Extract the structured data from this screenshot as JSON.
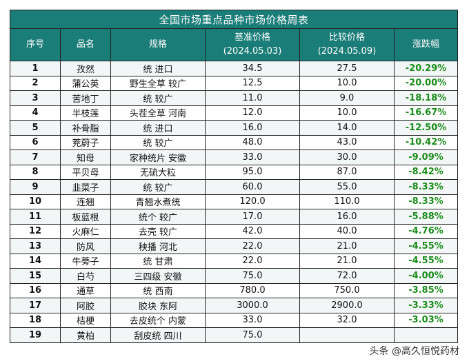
{
  "table": {
    "title": "全国市场重点品种市场价格周表",
    "headers": {
      "index": "序号",
      "name": "品名",
      "spec": "规格",
      "base_price": "基准价格",
      "base_date": "(2024.05.03)",
      "cmp_price": "比较价格",
      "cmp_date": "(2024.05.09)",
      "change": "涨跌幅"
    },
    "rows": [
      {
        "idx": "1",
        "name": "孜然",
        "spec": "统 进口",
        "base": "34.5",
        "cmp": "27.5",
        "chg": "-20.29%"
      },
      {
        "idx": "2",
        "name": "蒲公英",
        "spec": "野生全草 较广",
        "base": "12.5",
        "cmp": "10.0",
        "chg": "-20.00%"
      },
      {
        "idx": "3",
        "name": "苦地丁",
        "spec": "统 较广",
        "base": "11.0",
        "cmp": "9.0",
        "chg": "-18.18%"
      },
      {
        "idx": "4",
        "name": "半枝莲",
        "spec": "头茬全草 河南",
        "base": "12.0",
        "cmp": "10.0",
        "chg": "-16.67%"
      },
      {
        "idx": "5",
        "name": "补骨脂",
        "spec": "统 进口",
        "base": "16.0",
        "cmp": "14.0",
        "chg": "-12.50%"
      },
      {
        "idx": "6",
        "name": "茺蔚子",
        "spec": "统 较广",
        "base": "48.0",
        "cmp": "43.0",
        "chg": "-10.42%"
      },
      {
        "idx": "7",
        "name": "知母",
        "spec": "家种统片 安徽",
        "base": "33.0",
        "cmp": "30.0",
        "chg": "-9.09%"
      },
      {
        "idx": "8",
        "name": "平贝母",
        "spec": "无硫大粒",
        "base": "95.0",
        "cmp": "87.0",
        "chg": "-8.42%"
      },
      {
        "idx": "9",
        "name": "韭菜子",
        "spec": "统 较广",
        "base": "60.0",
        "cmp": "55.0",
        "chg": "-8.33%"
      },
      {
        "idx": "10",
        "name": "连翘",
        "spec": "青翘水煮统",
        "base": "120.0",
        "cmp": "110.0",
        "chg": "-8.33%"
      },
      {
        "idx": "11",
        "name": "板蓝根",
        "spec": "统个 较广",
        "base": "17.0",
        "cmp": "16.0",
        "chg": "-5.88%"
      },
      {
        "idx": "12",
        "name": "火麻仁",
        "spec": "去壳 较广",
        "base": "42.0",
        "cmp": "40.0",
        "chg": "-4.76%"
      },
      {
        "idx": "13",
        "name": "防风",
        "spec": "秧播 河北",
        "base": "22.0",
        "cmp": "21.0",
        "chg": "-4.55%"
      },
      {
        "idx": "14",
        "name": "牛蒡子",
        "spec": "统 甘肃",
        "base": "22.0",
        "cmp": "21.0",
        "chg": "-4.55%"
      },
      {
        "idx": "15",
        "name": "白芍",
        "spec": "三四级 安徽",
        "base": "75.0",
        "cmp": "72.0",
        "chg": "-4.00%"
      },
      {
        "idx": "16",
        "name": "通草",
        "spec": "统 西南",
        "base": "780.0",
        "cmp": "750.0",
        "chg": "-3.85%"
      },
      {
        "idx": "17",
        "name": "阿胶",
        "spec": "胶块 东阿",
        "base": "3000.0",
        "cmp": "2900.0",
        "chg": "-3.33%"
      },
      {
        "idx": "18",
        "name": "桔梗",
        "spec": "去皮统个 内蒙",
        "base": "33.0",
        "cmp": "32.0",
        "chg": "-3.03%"
      },
      {
        "idx": "19",
        "name": "黄柏",
        "spec": "刮皮统 四川",
        "base": "75.0",
        "cmp": "",
        "chg": ""
      }
    ]
  },
  "credit": "头条 @高久恒悦药材",
  "colors": {
    "header_bg": "#1b7d78",
    "header_text": "#ffffff",
    "decline": "#1a8c1a"
  }
}
